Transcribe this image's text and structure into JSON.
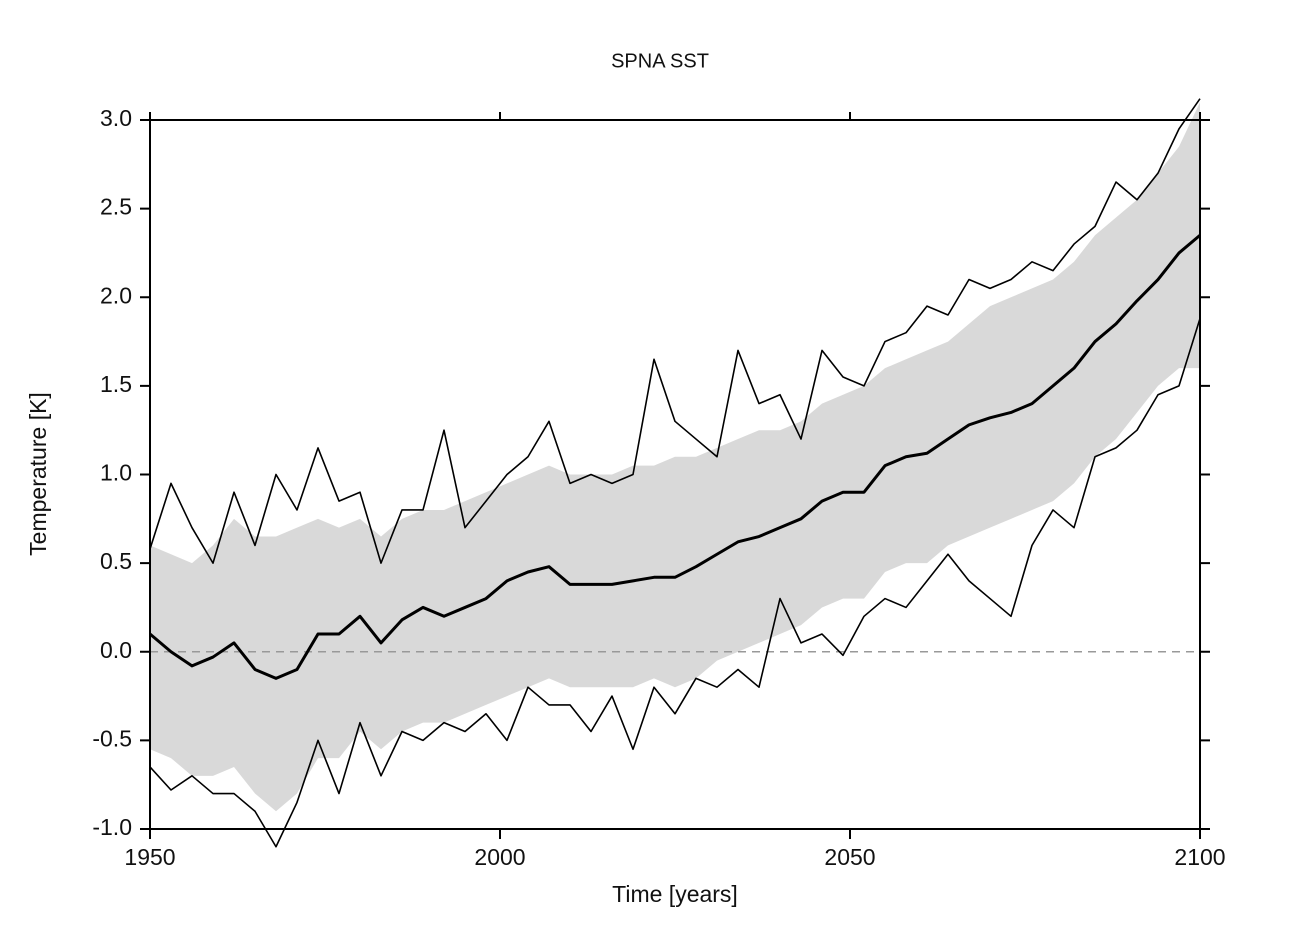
{
  "chart_data": {
    "type": "line",
    "title": "SPNA SST",
    "xlabel": "Time [years]",
    "ylabel": "Temperature [K]",
    "x": [
      1950,
      1953,
      1956,
      1959,
      1962,
      1965,
      1968,
      1971,
      1974,
      1977,
      1980,
      1983,
      1986,
      1989,
      1992,
      1995,
      1998,
      2001,
      2004,
      2007,
      2010,
      2013,
      2016,
      2019,
      2022,
      2025,
      2028,
      2031,
      2034,
      2037,
      2040,
      2043,
      2046,
      2049,
      2052,
      2055,
      2058,
      2061,
      2064,
      2067,
      2070,
      2073,
      2076,
      2079,
      2082,
      2085,
      2088,
      2091,
      2094,
      2097,
      2100
    ],
    "band": {
      "color": "#d9d9d9",
      "upper": [
        0.6,
        0.55,
        0.5,
        0.6,
        0.75,
        0.65,
        0.65,
        0.7,
        0.75,
        0.7,
        0.75,
        0.65,
        0.75,
        0.8,
        0.8,
        0.85,
        0.9,
        0.95,
        1.0,
        1.05,
        1.0,
        1.0,
        1.0,
        1.05,
        1.05,
        1.1,
        1.1,
        1.15,
        1.2,
        1.25,
        1.25,
        1.3,
        1.4,
        1.45,
        1.5,
        1.6,
        1.65,
        1.7,
        1.75,
        1.85,
        1.95,
        2.0,
        2.05,
        2.1,
        2.2,
        2.35,
        2.45,
        2.55,
        2.7,
        2.85,
        3.1
      ],
      "lower": [
        -0.55,
        -0.6,
        -0.7,
        -0.7,
        -0.65,
        -0.8,
        -0.9,
        -0.8,
        -0.6,
        -0.6,
        -0.45,
        -0.55,
        -0.45,
        -0.4,
        -0.4,
        -0.35,
        -0.3,
        -0.25,
        -0.2,
        -0.15,
        -0.2,
        -0.2,
        -0.2,
        -0.2,
        -0.15,
        -0.2,
        -0.15,
        -0.05,
        0.0,
        0.05,
        0.1,
        0.15,
        0.25,
        0.3,
        0.3,
        0.45,
        0.5,
        0.5,
        0.6,
        0.65,
        0.7,
        0.75,
        0.8,
        0.85,
        0.95,
        1.1,
        1.2,
        1.35,
        1.5,
        1.6,
        1.6
      ]
    },
    "series": [
      {
        "color": "#000000",
        "values": [
          0.58,
          0.95,
          0.7,
          0.5,
          0.9,
          0.6,
          1.0,
          0.8,
          1.15,
          0.85,
          0.9,
          0.5,
          0.8,
          0.8,
          1.25,
          0.7,
          0.85,
          1.0,
          1.1,
          1.3,
          0.95,
          1.0,
          0.95,
          1.0,
          1.65,
          1.3,
          1.2,
          1.1,
          1.7,
          1.4,
          1.45,
          1.2,
          1.7,
          1.55,
          1.5,
          1.75,
          1.8,
          1.95,
          1.9,
          2.1,
          2.05,
          2.1,
          2.2,
          2.15,
          2.3,
          2.4,
          2.65,
          2.55,
          2.7,
          2.95,
          3.12
        ]
      },
      {
        "color": "#000000",
        "values": [
          0.1,
          0.0,
          -0.08,
          -0.03,
          0.05,
          -0.1,
          -0.15,
          -0.1,
          0.1,
          0.1,
          0.2,
          0.05,
          0.18,
          0.25,
          0.2,
          0.25,
          0.3,
          0.4,
          0.45,
          0.48,
          0.38,
          0.38,
          0.38,
          0.4,
          0.42,
          0.42,
          0.48,
          0.55,
          0.62,
          0.65,
          0.7,
          0.75,
          0.85,
          0.9,
          0.9,
          1.05,
          1.1,
          1.12,
          1.2,
          1.28,
          1.32,
          1.35,
          1.4,
          1.5,
          1.6,
          1.75,
          1.85,
          1.98,
          2.1,
          2.25,
          2.35
        ]
      },
      {
        "color": "#000000",
        "values": [
          -0.65,
          -0.78,
          -0.7,
          -0.8,
          -0.8,
          -0.9,
          -1.1,
          -0.85,
          -0.5,
          -0.8,
          -0.4,
          -0.7,
          -0.45,
          -0.5,
          -0.4,
          -0.45,
          -0.35,
          -0.5,
          -0.2,
          -0.3,
          -0.3,
          -0.45,
          -0.25,
          -0.55,
          -0.2,
          -0.35,
          -0.15,
          -0.2,
          -0.1,
          -0.2,
          0.3,
          0.05,
          0.1,
          -0.02,
          0.2,
          0.3,
          0.25,
          0.4,
          0.55,
          0.4,
          0.3,
          0.2,
          0.6,
          0.8,
          0.7,
          1.1,
          1.15,
          1.25,
          1.45,
          1.5,
          1.88
        ]
      }
    ],
    "hline": {
      "value": 0,
      "color": "#999999",
      "dashed": true
    },
    "xlim": [
      1950,
      2100
    ],
    "xticks": [
      1950,
      2000,
      2050,
      2100
    ],
    "ylim": [
      -1.0,
      3.0
    ],
    "yticks": [
      {
        "value": -1.0,
        "label": "-1.0"
      },
      {
        "value": -0.5,
        "label": "-0.5"
      },
      {
        "value": 0,
        "label": "0.0"
      },
      {
        "value": 0.5,
        "label": "0.5"
      },
      {
        "value": 1.0,
        "label": "1.0"
      },
      {
        "value": 1.5,
        "label": "1.5"
      },
      {
        "value": 2.0,
        "label": "2.0"
      },
      {
        "value": 2.5,
        "label": "2.5"
      },
      {
        "value": 3.0,
        "label": "3.0"
      }
    ]
  }
}
